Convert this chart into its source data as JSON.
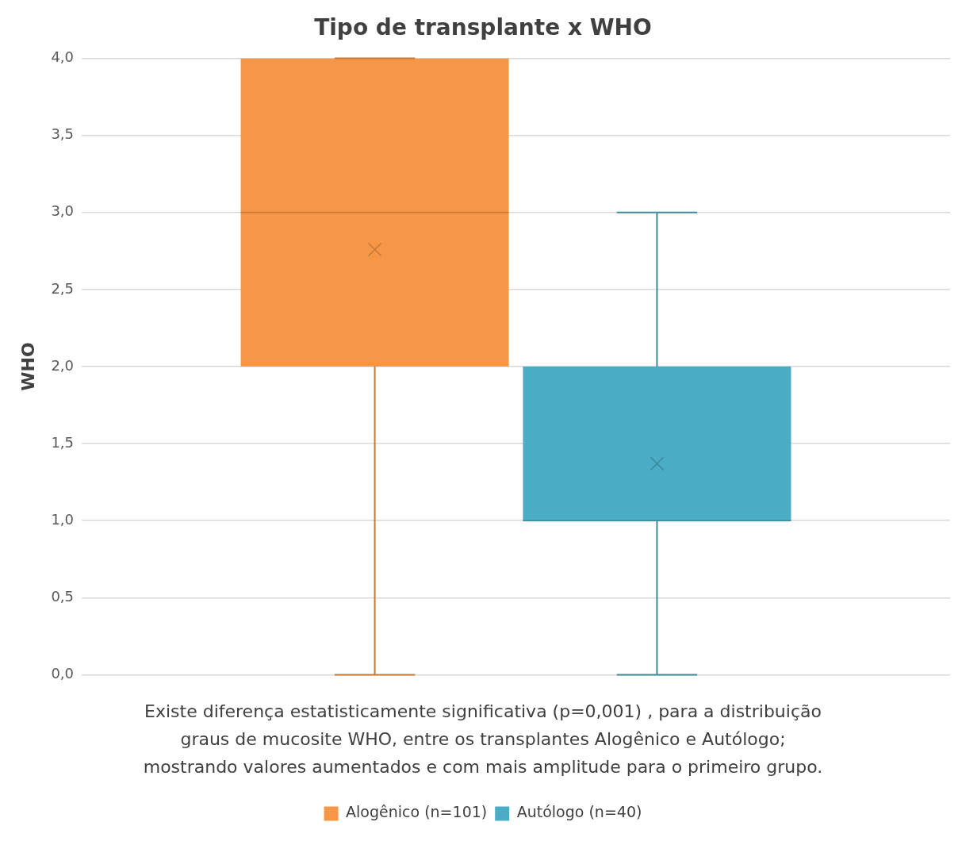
{
  "chart_data": {
    "type": "box",
    "title": "Tipo de transplante x WHO",
    "ylabel": "WHO",
    "categories": [
      null
    ],
    "series": [
      {
        "name": "Alogênico (n=101)",
        "color": "#f59746",
        "boxes": [
          {
            "low": 0,
            "q1": 2,
            "median": 3,
            "q3": 4,
            "high": 4,
            "mean": 2.76
          }
        ]
      },
      {
        "name": "Autólogo (n=40)",
        "color": "#4bacc6",
        "boxes": [
          {
            "low": 0,
            "q1": 1,
            "median": 1,
            "q3": 2,
            "high": 3,
            "mean": 1.37
          }
        ]
      }
    ],
    "ylim": [
      0,
      4
    ],
    "yticks": [
      {
        "value": 0,
        "label": "0,0"
      },
      {
        "value": 0.5,
        "label": "0,5"
      },
      {
        "value": 1,
        "label": "1,0"
      },
      {
        "value": 1.5,
        "label": "1,5"
      },
      {
        "value": 2,
        "label": "2,0"
      },
      {
        "value": 2.5,
        "label": "2,5"
      },
      {
        "value": 3,
        "label": "3,0"
      },
      {
        "value": 3.5,
        "label": "3,5"
      },
      {
        "value": 4,
        "label": "4,0"
      }
    ],
    "grid": "y",
    "tick_labels": "y",
    "legend": "bottom",
    "annotations": [
      "Existe diferença estatisticamente significativa (p=0,001) , para a distribuição graus de mucosite WHO, entre os transplantes Alogênico e Autólogo; mostrando valores aumentados e com mais amplitude para o primeiro grupo."
    ]
  }
}
